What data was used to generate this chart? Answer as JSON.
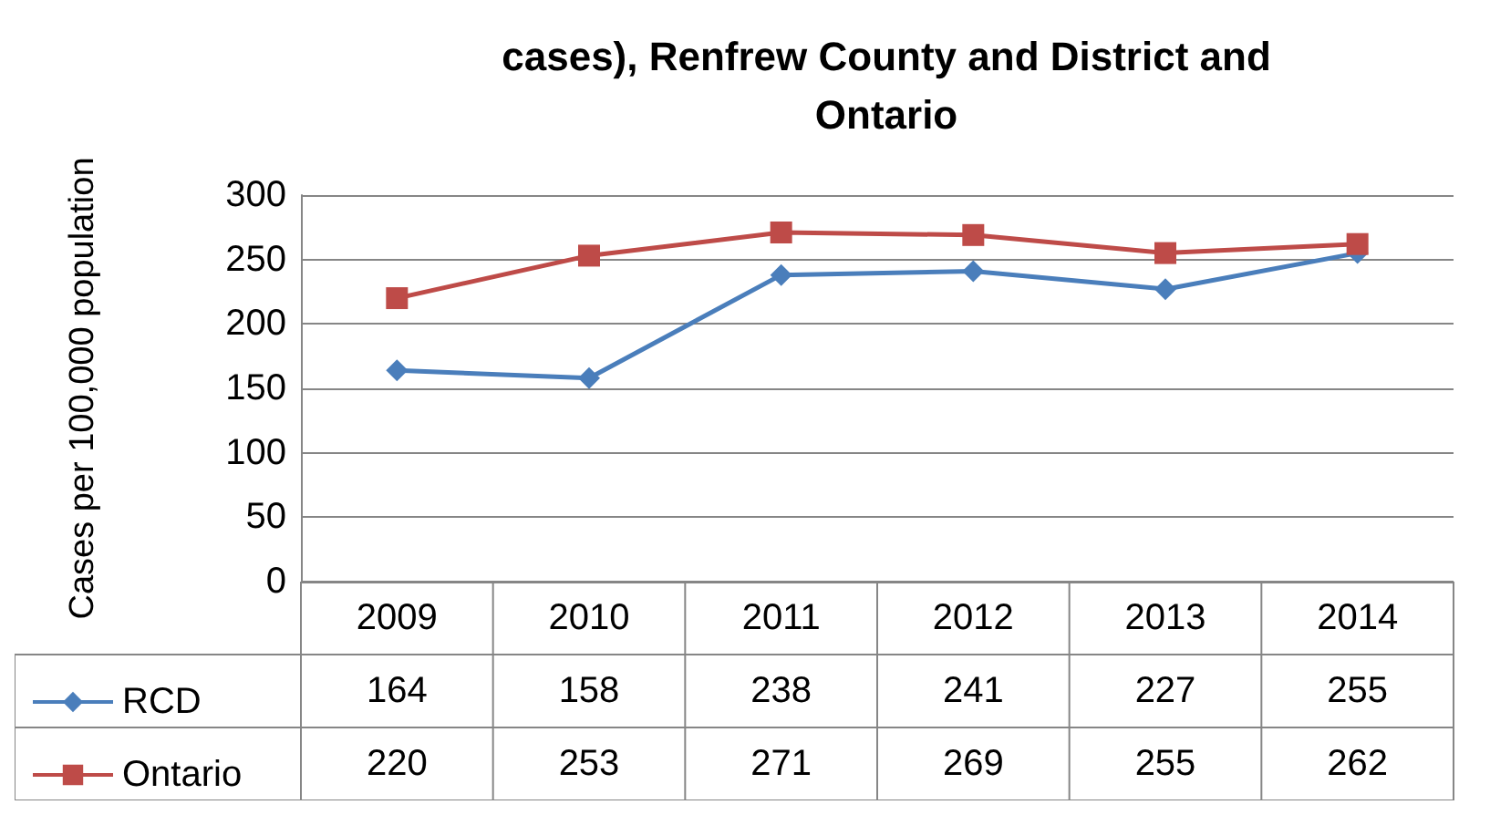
{
  "chart_data": {
    "type": "line",
    "title": "cases), Renfrew County and District and\nOntario",
    "ylabel": "Cases per 100,000 population",
    "categories": [
      "2009",
      "2010",
      "2011",
      "2012",
      "2013",
      "2014"
    ],
    "series": [
      {
        "name": "RCD",
        "color": "#4a7ebb",
        "marker": "diamond",
        "values": [
          164,
          158,
          238,
          241,
          227,
          255
        ]
      },
      {
        "name": "Ontario",
        "color": "#be4b48",
        "marker": "square",
        "values": [
          220,
          253,
          271,
          269,
          255,
          262
        ]
      }
    ],
    "ylim": [
      0,
      300
    ],
    "yticks": [
      0,
      50,
      100,
      150,
      200,
      250,
      300
    ],
    "grid": "y",
    "legend": "bottom left",
    "data_labels": true
  }
}
